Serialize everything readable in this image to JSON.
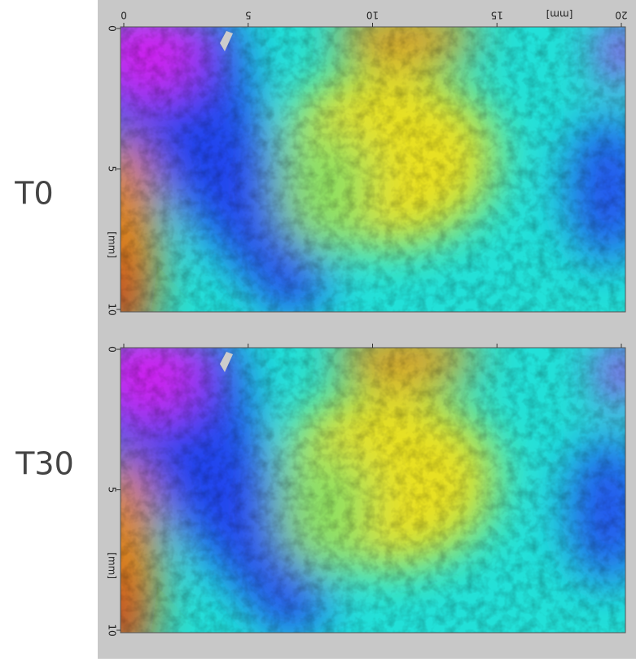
{
  "panels": [
    {
      "label": "T0",
      "x_ticks": [
        "0",
        "5",
        "10",
        "15",
        "20"
      ],
      "x_unit": "[mm]",
      "y_ticks": [
        "0",
        "5",
        "10"
      ],
      "y_unit": "[mm]"
    },
    {
      "label": "T30",
      "y_ticks": [
        "0",
        "5",
        "10"
      ],
      "y_unit": "[mm]"
    }
  ]
}
